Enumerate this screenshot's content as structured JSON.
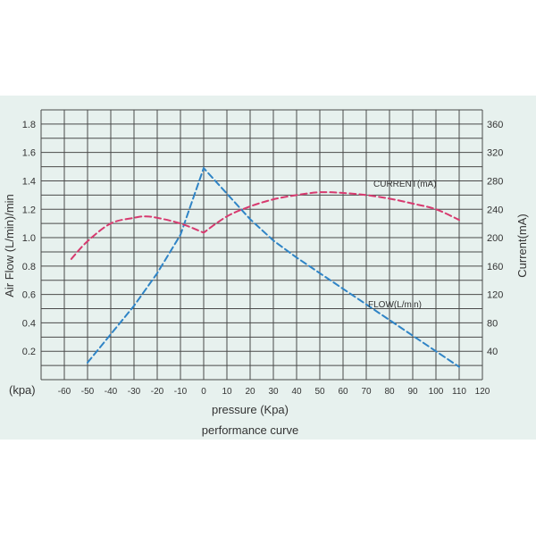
{
  "chart_data": {
    "type": "line",
    "title": "performance curve",
    "xlabel": "pressure (Kpa)",
    "x_unit_label": "(kpa)",
    "ylabel_left": "Air Flow (L/min)/min",
    "ylabel_right": "Current(mA)",
    "ylabel_right_overlay": "nt(mA)",
    "xlim": [
      -70,
      120
    ],
    "ylim_left": [
      0,
      1.9
    ],
    "ylim_right": [
      0,
      380
    ],
    "x_ticks": [
      "-60",
      "-50",
      "-40",
      "-30",
      "-20",
      "-10",
      "0",
      "10",
      "20",
      "30",
      "40",
      "50",
      "60",
      "70",
      "80",
      "90",
      "100",
      "110",
      "120"
    ],
    "y_left_ticks": [
      "1.8",
      "1.6",
      "1.4",
      "1.2",
      "1.0",
      "0.8",
      "0.6",
      "0.4",
      "0.2"
    ],
    "y_right_ticks": [
      "360",
      "320",
      "280",
      "240",
      "200",
      "160",
      "120",
      "80",
      "40"
    ],
    "grid": true,
    "series": [
      {
        "name": "FLOW(L/min)",
        "axis": "left",
        "color": "#2f84c6",
        "x": [
          -50,
          -40,
          -30,
          -20,
          -10,
          0,
          10,
          20,
          30,
          40,
          50,
          60,
          70,
          80,
          90,
          100,
          110
        ],
        "y": [
          0.12,
          0.32,
          0.52,
          0.75,
          1.02,
          1.49,
          1.31,
          1.13,
          0.98,
          0.86,
          0.75,
          0.64,
          0.53,
          0.42,
          0.31,
          0.2,
          0.09
        ]
      },
      {
        "name": "CURRENT(mA)",
        "axis": "right",
        "color": "#d73a6f",
        "x": [
          -57,
          -50,
          -40,
          -30,
          -25,
          -20,
          -10,
          0,
          10,
          20,
          30,
          40,
          50,
          60,
          70,
          80,
          90,
          100,
          110
        ],
        "y": [
          170,
          195,
          220,
          228,
          230,
          228,
          220,
          207,
          230,
          244,
          254,
          260,
          264,
          263,
          260,
          255,
          248,
          240,
          225
        ]
      }
    ]
  }
}
